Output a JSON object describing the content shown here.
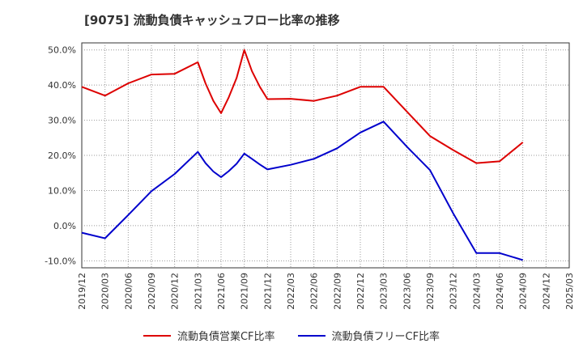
{
  "chart_data": {
    "type": "line",
    "title": "[9075]  流動負債キャッシュフロー比率の推移",
    "xlabel": "",
    "ylabel": "",
    "ylim": [
      -12,
      52
    ],
    "yticks": [
      50,
      40,
      30,
      20,
      10,
      0,
      -10
    ],
    "ytick_labels": [
      "50.0%",
      "40.0%",
      "30.0%",
      "20.0%",
      "10.0%",
      "0.0%",
      "-10.0%"
    ],
    "categories": [
      "2019/12",
      "2020/03",
      "2020/06",
      "2020/09",
      "2020/12",
      "2021/03",
      "2021/06",
      "2021/09",
      "2021/12",
      "2022/03",
      "2022/06",
      "2022/09",
      "2022/12",
      "2023/03",
      "2023/06",
      "2023/09",
      "2023/12",
      "2024/03",
      "2024/06",
      "2024/09",
      "2024/12",
      "2025/03"
    ],
    "grid": true,
    "legend_position": "bottom",
    "series": [
      {
        "name": "流動負債営業CF比率",
        "color": "#dd0000",
        "points": [
          [
            0,
            39.5
          ],
          [
            1,
            37.0
          ],
          [
            2,
            40.5
          ],
          [
            3,
            43.0
          ],
          [
            4,
            43.2
          ],
          [
            5,
            46.5
          ],
          [
            5.33,
            40.5
          ],
          [
            5.67,
            35.5
          ],
          [
            6,
            32.0
          ],
          [
            6.33,
            36.5
          ],
          [
            6.67,
            42.0
          ],
          [
            7,
            50.0
          ],
          [
            7.33,
            44.0
          ],
          [
            7.67,
            39.5
          ],
          [
            8,
            36.0
          ],
          [
            9,
            36.1
          ],
          [
            10,
            35.5
          ],
          [
            11,
            37.0
          ],
          [
            12,
            39.5
          ],
          [
            13,
            39.5
          ],
          [
            14,
            32.5
          ],
          [
            15,
            25.5
          ],
          [
            16,
            21.5
          ],
          [
            17,
            17.8
          ],
          [
            18,
            18.3
          ],
          [
            19,
            23.7
          ]
        ]
      },
      {
        "name": "流動負債フリーCF比率",
        "color": "#0000cc",
        "points": [
          [
            0,
            -2.0
          ],
          [
            1,
            -3.6
          ],
          [
            2,
            3.0
          ],
          [
            3,
            9.8
          ],
          [
            4,
            14.7
          ],
          [
            5,
            21.0
          ],
          [
            5.33,
            17.8
          ],
          [
            5.67,
            15.4
          ],
          [
            6,
            13.8
          ],
          [
            6.33,
            15.5
          ],
          [
            6.67,
            17.6
          ],
          [
            7,
            20.5
          ],
          [
            7.33,
            19.0
          ],
          [
            7.67,
            17.4
          ],
          [
            8,
            16.0
          ],
          [
            9,
            17.3
          ],
          [
            10,
            19.0
          ],
          [
            11,
            22.0
          ],
          [
            12,
            26.5
          ],
          [
            13,
            29.6
          ],
          [
            14,
            22.5
          ],
          [
            15,
            15.8
          ],
          [
            16,
            3.5
          ],
          [
            17,
            -7.8
          ],
          [
            18,
            -7.8
          ],
          [
            19,
            -9.8
          ]
        ]
      }
    ]
  }
}
